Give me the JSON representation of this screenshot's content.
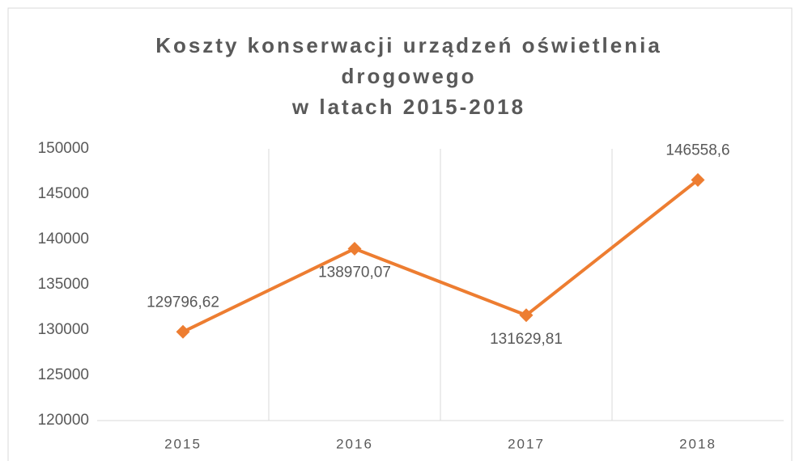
{
  "chart_data": {
    "type": "line",
    "title": [
      "Koszty konserwacji urządzeń oświetlenia",
      "drogowego",
      "w latach 2015-2018"
    ],
    "categories": [
      "2015",
      "2016",
      "2017",
      "2018"
    ],
    "series": [
      {
        "name": "Koszty",
        "color": "#ED7D31",
        "values": [
          129796.62,
          138970.07,
          131629.81,
          146558.6
        ],
        "value_labels": [
          "129796,62",
          "138970,07",
          "131629,81",
          "146558,6"
        ]
      }
    ],
    "ylim": [
      120000,
      150000
    ],
    "yticks": [
      120000,
      125000,
      130000,
      135000,
      140000,
      145000,
      150000
    ],
    "grid": true
  }
}
